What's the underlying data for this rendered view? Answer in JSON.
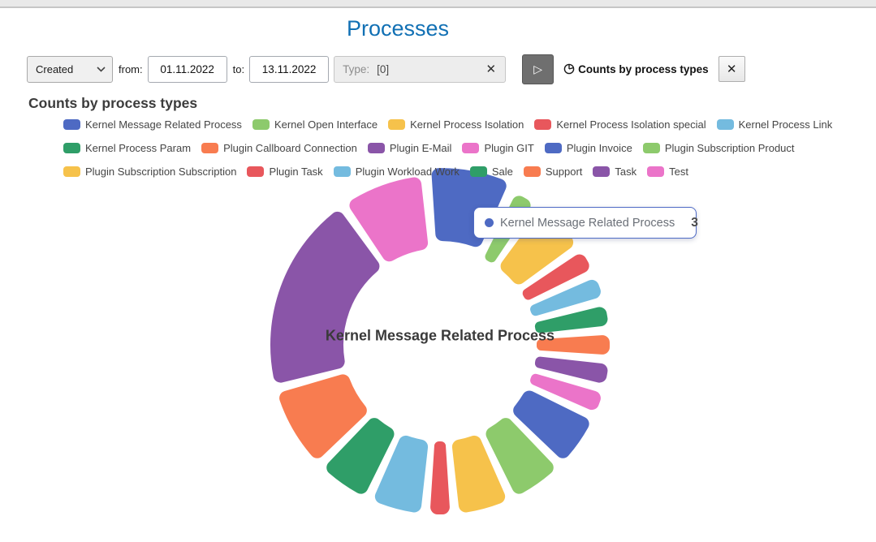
{
  "page": {
    "title": "Processes"
  },
  "toolbar": {
    "field_select": {
      "value": "Created"
    },
    "from_label": "from:",
    "from_value": "01.11.2022",
    "to_label": "to:",
    "to_value": "13.11.2022",
    "type_placeholder": "Type:",
    "type_value": "[0]",
    "type_clear_glyph": "✕",
    "play_glyph": "▷",
    "chart_toggle_label": "Counts by process types",
    "close_glyph": "✕"
  },
  "section": {
    "heading": "Counts by process types"
  },
  "chart_data": {
    "type": "pie",
    "subtype": "donut",
    "title": "Counts by process types",
    "legend_position": "top",
    "legend_row_breaks": [
      4,
      10
    ],
    "start_angle_deg": -5,
    "pulled_index": 0,
    "center_label": "Kernel Message Related Process",
    "series": [
      {
        "name": "Kernel Message Related Process",
        "value": 3,
        "color": "#4e6ac3"
      },
      {
        "name": "Kernel Open Interface",
        "value": 1,
        "color": "#8dca6c"
      },
      {
        "name": "Kernel Process Isolation",
        "value": 2,
        "color": "#f6c24b"
      },
      {
        "name": "Kernel Process Isolation special",
        "value": 1,
        "color": "#e8575c"
      },
      {
        "name": "Kernel Process Link",
        "value": 1,
        "color": "#74bbdf"
      },
      {
        "name": "Kernel Process Param",
        "value": 1,
        "color": "#2f9e68"
      },
      {
        "name": "Plugin Callboard Connection",
        "value": 1,
        "color": "#f87c50"
      },
      {
        "name": "Plugin E-Mail",
        "value": 1,
        "color": "#8a55a8"
      },
      {
        "name": "Plugin GIT",
        "value": 1,
        "color": "#eb74c9"
      },
      {
        "name": "Plugin Invoice",
        "value": 2,
        "color": "#4e6ac3"
      },
      {
        "name": "Plugin Subscription Product",
        "value": 2,
        "color": "#8dca6c"
      },
      {
        "name": "Plugin Subscription Subscription",
        "value": 2,
        "color": "#f6c24b"
      },
      {
        "name": "Plugin Task",
        "value": 1,
        "color": "#e8575c"
      },
      {
        "name": "Plugin Workload Work",
        "value": 2,
        "color": "#74bbdf"
      },
      {
        "name": "Sale",
        "value": 2,
        "color": "#2f9e68"
      },
      {
        "name": "Support",
        "value": 3,
        "color": "#f87c50"
      },
      {
        "name": "Task",
        "value": 7,
        "color": "#8a55a8"
      },
      {
        "name": "Test",
        "value": 3,
        "color": "#eb74c9"
      }
    ]
  },
  "tooltip": {
    "label": "Kernel Message Related Process",
    "value": "3",
    "dot_color": "#4e6ac3"
  },
  "colors": {
    "title_blue": "#1170b4",
    "tooltip_border": "#4e6ac5"
  }
}
